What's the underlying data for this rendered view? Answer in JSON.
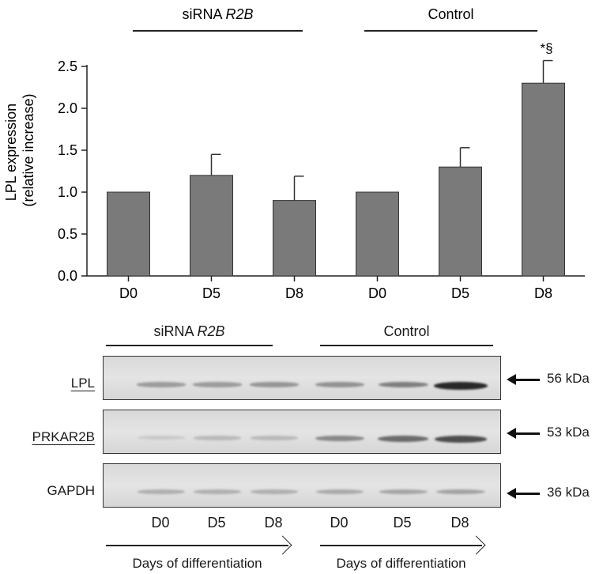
{
  "chart_data": {
    "type": "bar",
    "categories": [
      "D0",
      "D5",
      "D8",
      "D0",
      "D5",
      "D8"
    ],
    "groups": [
      {
        "name_prefix": "siRNA ",
        "name_italic": "R2B",
        "categories": [
          "D0",
          "D5",
          "D8"
        ]
      },
      {
        "name_prefix": "Control",
        "name_italic": "",
        "categories": [
          "D0",
          "D5",
          "D8"
        ]
      }
    ],
    "values": [
      1.0,
      1.2,
      0.9,
      1.0,
      1.3,
      2.3
    ],
    "errors": [
      0,
      0.25,
      0.29,
      0,
      0.23,
      0.27
    ],
    "annotations": [
      "",
      "",
      "",
      "",
      "",
      "*§"
    ],
    "ylabel_line1": "LPL expression",
    "ylabel_line2": "(relative increase)",
    "ylim": [
      0,
      2.5
    ],
    "yticks": [
      "0.0",
      "0.5",
      "1.0",
      "1.5",
      "2.0",
      "2.5"
    ],
    "bar_color": "#7a7a7a",
    "grid": false
  },
  "blot": {
    "group_labels": [
      {
        "prefix": "siRNA ",
        "italic": "R2B"
      },
      {
        "prefix": "Control",
        "italic": ""
      }
    ],
    "rows": [
      {
        "label": "LPL",
        "underlined": true,
        "mw": "56 kDa"
      },
      {
        "label": "PRKAR2B",
        "underlined": true,
        "mw": "53 kDa"
      },
      {
        "label": "GAPDH",
        "underlined": false,
        "mw": "36 kDa"
      }
    ],
    "lanes": [
      "D0",
      "D5",
      "D8",
      "D0",
      "D5",
      "D8"
    ],
    "days_label": "Days of differentiation",
    "band_intensity": [
      [
        0.35,
        0.35,
        0.38,
        0.4,
        0.5,
        0.95
      ],
      [
        0.12,
        0.2,
        0.2,
        0.45,
        0.6,
        0.75
      ],
      [
        0.25,
        0.25,
        0.25,
        0.28,
        0.3,
        0.32
      ]
    ]
  }
}
